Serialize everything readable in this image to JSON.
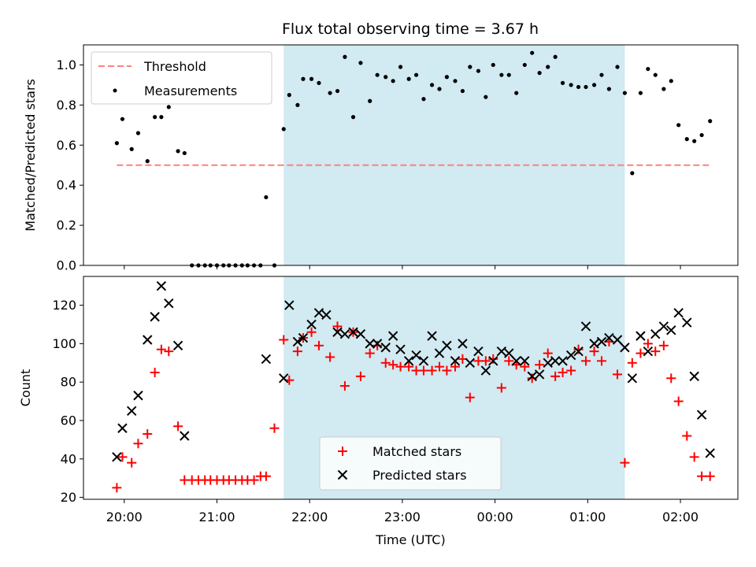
{
  "chart_data": {
    "title": "Flux total observing time = 3.67 h",
    "xlabel": "Time (UTC)",
    "x_ticks": [
      "20:00",
      "21:00",
      "22:00",
      "23:00",
      "00:00",
      "01:00",
      "02:00"
    ],
    "x_tick_hours": [
      20,
      21,
      22,
      23,
      24,
      25,
      26
    ],
    "xlim_hours": [
      19.56,
      26.62
    ],
    "shaded_region_hours": [
      21.72,
      25.4
    ],
    "colors": {
      "shade": "#add8e6",
      "threshold": "#ff7f7f",
      "measurements": "#000000",
      "matched": "#ff0000",
      "predicted": "#000000"
    },
    "panels": [
      {
        "type": "scatter",
        "ylabel": "Matched/Predicted stars",
        "ylim": [
          0,
          1.1
        ],
        "y_ticks": [
          "0.0",
          "0.2",
          "0.4",
          "0.6",
          "0.8",
          "1.0"
        ],
        "y_tick_values": [
          0,
          0.2,
          0.4,
          0.6,
          0.8,
          1.0
        ],
        "legend_position": "top-left",
        "threshold": {
          "name": "Threshold",
          "value": 0.5,
          "x_range_hours": [
            19.92,
            26.33
          ]
        },
        "series": [
          {
            "name": "Measurements",
            "x_hours": [
              19.92,
              19.98,
              20.08,
              20.15,
              20.25,
              20.33,
              20.4,
              20.48,
              20.58,
              20.65,
              20.73,
              20.8,
              20.87,
              20.93,
              21.0,
              21.07,
              21.13,
              21.2,
              21.27,
              21.33,
              21.4,
              21.47,
              21.53,
              21.62,
              21.72,
              21.78,
              21.87,
              21.93,
              22.02,
              22.1,
              22.22,
              22.3,
              22.38,
              22.47,
              22.55,
              22.65,
              22.73,
              22.82,
              22.9,
              22.98,
              23.07,
              23.15,
              23.23,
              23.32,
              23.4,
              23.48,
              23.57,
              23.65,
              23.73,
              23.82,
              23.9,
              23.98,
              24.07,
              24.15,
              24.23,
              24.32,
              24.4,
              24.48,
              24.57,
              24.65,
              24.73,
              24.82,
              24.9,
              24.98,
              25.07,
              25.15,
              25.23,
              25.32,
              25.4,
              25.48,
              25.57,
              25.65,
              25.73,
              25.82,
              25.9,
              25.98,
              26.07,
              26.15,
              26.23,
              26.32
            ],
            "y": [
              0.61,
              0.73,
              0.58,
              0.66,
              0.52,
              0.74,
              0.74,
              0.79,
              0.57,
              0.56,
              0.0,
              0.0,
              0.0,
              0.0,
              0.0,
              0.0,
              0.0,
              0.0,
              0.0,
              0.0,
              0.0,
              0.0,
              0.34,
              0.0,
              0.68,
              0.85,
              0.8,
              0.93,
              0.93,
              0.91,
              0.86,
              0.87,
              1.04,
              0.74,
              1.01,
              0.82,
              0.95,
              0.94,
              0.92,
              0.99,
              0.93,
              0.95,
              0.83,
              0.9,
              0.88,
              0.94,
              0.92,
              0.87,
              0.99,
              0.97,
              0.84,
              1.0,
              0.95,
              0.95,
              0.86,
              1.0,
              1.06,
              0.96,
              0.99,
              1.04,
              0.91,
              0.9,
              0.89,
              0.89,
              0.9,
              0.95,
              0.88,
              0.99,
              0.86,
              0.46,
              0.86,
              0.98,
              0.95,
              0.88,
              0.92,
              0.7,
              0.63,
              0.62,
              0.65,
              0.72
            ]
          }
        ]
      },
      {
        "type": "scatter",
        "ylabel": "Count",
        "ylim": [
          19,
          135
        ],
        "y_ticks": [
          "20",
          "40",
          "60",
          "80",
          "100",
          "120"
        ],
        "y_tick_values": [
          20,
          40,
          60,
          80,
          100,
          120
        ],
        "legend_position": "lower-center",
        "series": [
          {
            "name": "Matched stars",
            "marker": "plus",
            "x_hours": [
              19.92,
              19.98,
              20.08,
              20.15,
              20.25,
              20.33,
              20.4,
              20.48,
              20.58,
              20.65,
              20.73,
              20.8,
              20.87,
              20.93,
              21.0,
              21.07,
              21.13,
              21.2,
              21.27,
              21.33,
              21.4,
              21.47,
              21.53,
              21.62,
              21.72,
              21.78,
              21.87,
              21.93,
              22.02,
              22.1,
              22.22,
              22.3,
              22.38,
              22.47,
              22.55,
              22.65,
              22.73,
              22.82,
              22.9,
              22.98,
              23.07,
              23.15,
              23.23,
              23.32,
              23.4,
              23.48,
              23.57,
              23.65,
              23.73,
              23.82,
              23.9,
              23.98,
              24.07,
              24.15,
              24.23,
              24.32,
              24.4,
              24.48,
              24.57,
              24.65,
              24.73,
              24.82,
              24.9,
              24.98,
              25.07,
              25.15,
              25.23,
              25.32,
              25.4,
              25.48,
              25.57,
              25.65,
              25.73,
              25.82,
              25.9,
              25.98,
              26.07,
              26.15,
              26.23,
              26.32
            ],
            "y": [
              25,
              41,
              38,
              48,
              53,
              85,
              97,
              96,
              57,
              29,
              29,
              29,
              29,
              29,
              29,
              29,
              29,
              29,
              29,
              29,
              29,
              31,
              31,
              56,
              102,
              81,
              96,
              103,
              106,
              99,
              93,
              109,
              78,
              106,
              83,
              95,
              99,
              90,
              89,
              88,
              88,
              86,
              86,
              86,
              88,
              86,
              88,
              92,
              72,
              91,
              91,
              92,
              77,
              91,
              89,
              88,
              82,
              89,
              95,
              83,
              85,
              86,
              97,
              91,
              96,
              91,
              101,
              84,
              38,
              90,
              95,
              100,
              96,
              99,
              82,
              70,
              52,
              41,
              31,
              31
            ]
          },
          {
            "name": "Predicted stars",
            "marker": "cross",
            "x_hours": [
              19.92,
              19.98,
              20.08,
              20.15,
              20.25,
              20.33,
              20.4,
              20.48,
              20.58,
              20.65,
              21.53,
              21.72,
              21.78,
              21.87,
              21.93,
              22.02,
              22.1,
              22.18,
              22.3,
              22.38,
              22.47,
              22.55,
              22.65,
              22.73,
              22.82,
              22.9,
              22.98,
              23.07,
              23.15,
              23.23,
              23.32,
              23.4,
              23.48,
              23.57,
              23.65,
              23.73,
              23.82,
              23.9,
              23.98,
              24.07,
              24.15,
              24.23,
              24.32,
              24.4,
              24.48,
              24.57,
              24.65,
              24.73,
              24.82,
              24.9,
              24.98,
              25.07,
              25.15,
              25.23,
              25.32,
              25.4,
              25.48,
              25.57,
              25.65,
              25.73,
              25.82,
              25.9,
              25.98,
              26.07,
              26.15,
              26.23,
              26.32
            ],
            "y": [
              41,
              56,
              65,
              73,
              102,
              114,
              130,
              121,
              99,
              52,
              92,
              82,
              120,
              101,
              103,
              110,
              116,
              115,
              106,
              105,
              106,
              105,
              100,
              100,
              98,
              104,
              97,
              91,
              94,
              91,
              104,
              95,
              99,
              91,
              100,
              90,
              96,
              86,
              91,
              96,
              95,
              91,
              91,
              83,
              84,
              90,
              91,
              91,
              94,
              96,
              109,
              100,
              101,
              103,
              102,
              98,
              82,
              104,
              96,
              105,
              109,
              107,
              116,
              111,
              83,
              63,
              43
            ]
          }
        ]
      }
    ]
  }
}
